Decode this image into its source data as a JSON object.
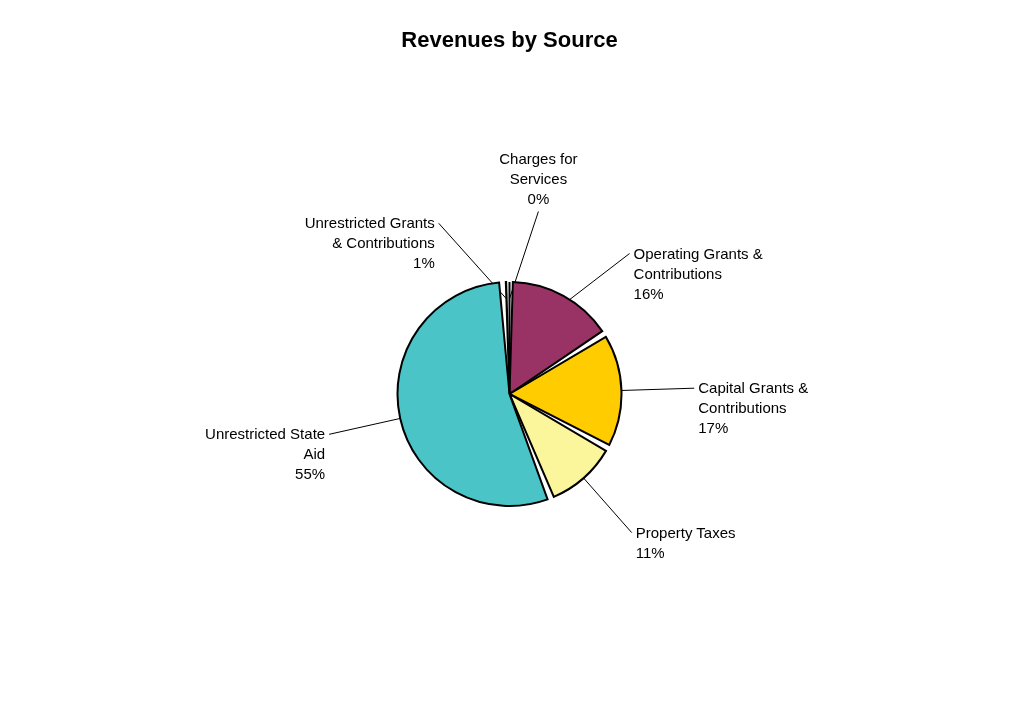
{
  "chart_data": {
    "type": "pie",
    "title": "Revenues by Source",
    "categories": [
      "Charges for Services",
      "Operating Grants & Contributions",
      "Capital Grants & Contributions",
      "Property Taxes",
      "Unrestricted State Aid",
      "Unrestricted Grants & Contributions"
    ],
    "values": [
      0,
      16,
      17,
      11,
      55,
      1
    ],
    "colors": [
      "#660066",
      "#993366",
      "#ffcc00",
      "#fbf59c",
      "#4bc4c8",
      "#993366"
    ],
    "value_labels": [
      "0%",
      "16%",
      "17%",
      "11%",
      "55%",
      "1%"
    ]
  }
}
